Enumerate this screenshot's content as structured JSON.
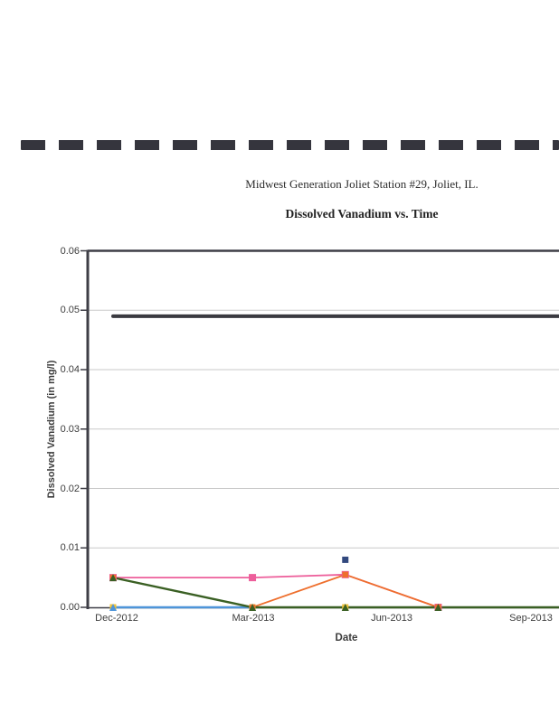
{
  "page": {
    "title": "Midwest Generation Joliet Station #29, Joliet, IL."
  },
  "chart_data": {
    "type": "line",
    "title": "Dissolved Vanadium vs. Time",
    "xlabel": "Date",
    "ylabel": "Dissolved Vanadium (in mg/l)",
    "ylim": [
      0,
      0.06
    ],
    "grid": true,
    "legend_position": "none",
    "x_unit": "months since Dec-2012",
    "y_tick_labels": [
      "0.06",
      "0.05",
      "0.04",
      "0.03",
      "0.02",
      "0.01",
      "0.00"
    ],
    "x_tick_labels": [
      "Dec-2012",
      "Mar-2013",
      "Jun-2013",
      "Sep-2013"
    ],
    "x_tick_months": [
      0,
      3,
      6,
      9
    ],
    "colors": {
      "axis": "#3e3e46",
      "grid": "#c9c9c9",
      "limit_line": "#3a3a40",
      "dashes": "#35353d"
    },
    "series": [
      {
        "id": "yellow-marker-series",
        "color": "#efc23a",
        "marker": "square",
        "marker_size": 7,
        "line_width": 1.6,
        "points": [
          [
            0,
            0.0
          ],
          [
            3,
            0.0
          ],
          [
            5,
            0.0
          ],
          [
            7,
            0.0
          ]
        ]
      },
      {
        "id": "light-blue-triangle-series",
        "color": "#4e95d9",
        "marker": "triangle",
        "marker_size": 8,
        "line_width": 2.4,
        "points": [
          [
            0,
            0.0
          ],
          [
            3,
            0.0
          ]
        ]
      },
      {
        "id": "pink-square-series",
        "color": "#ed5f9b",
        "marker": "square",
        "marker_size": 8,
        "line_width": 1.8,
        "points": [
          [
            0,
            0.005
          ],
          [
            3,
            0.005
          ],
          [
            5,
            0.0055
          ],
          [
            7,
            0.0
          ]
        ]
      },
      {
        "id": "orange-square-series",
        "color": "#ee6f2d",
        "marker": "square",
        "marker_size": 6.5,
        "line_width": 1.8,
        "points": [
          [
            0,
            0.005
          ],
          [
            3,
            0.0
          ],
          [
            5,
            0.0055
          ],
          [
            7,
            0.0
          ]
        ]
      },
      {
        "id": "dark-green-triangle-series",
        "color": "#3a6024",
        "marker": "triangle",
        "marker_size": 8,
        "line_width": 2.4,
        "marker_skip_last": true,
        "points": [
          [
            0,
            0.005
          ],
          [
            3,
            0.0
          ],
          [
            5,
            0.0
          ],
          [
            7,
            0.0
          ],
          [
            9.6,
            0.0
          ]
        ]
      },
      {
        "id": "navy-square-point",
        "color": "#32497e",
        "marker": "square",
        "marker_size": 7,
        "line_width": 0,
        "points": [
          [
            5,
            0.008
          ]
        ]
      },
      {
        "id": "limit-line",
        "color": "#3a3a40",
        "marker": "none",
        "marker_size": 0,
        "line_width": 4,
        "points": [
          [
            0,
            0.049
          ],
          [
            9.6,
            0.049
          ]
        ]
      }
    ]
  }
}
